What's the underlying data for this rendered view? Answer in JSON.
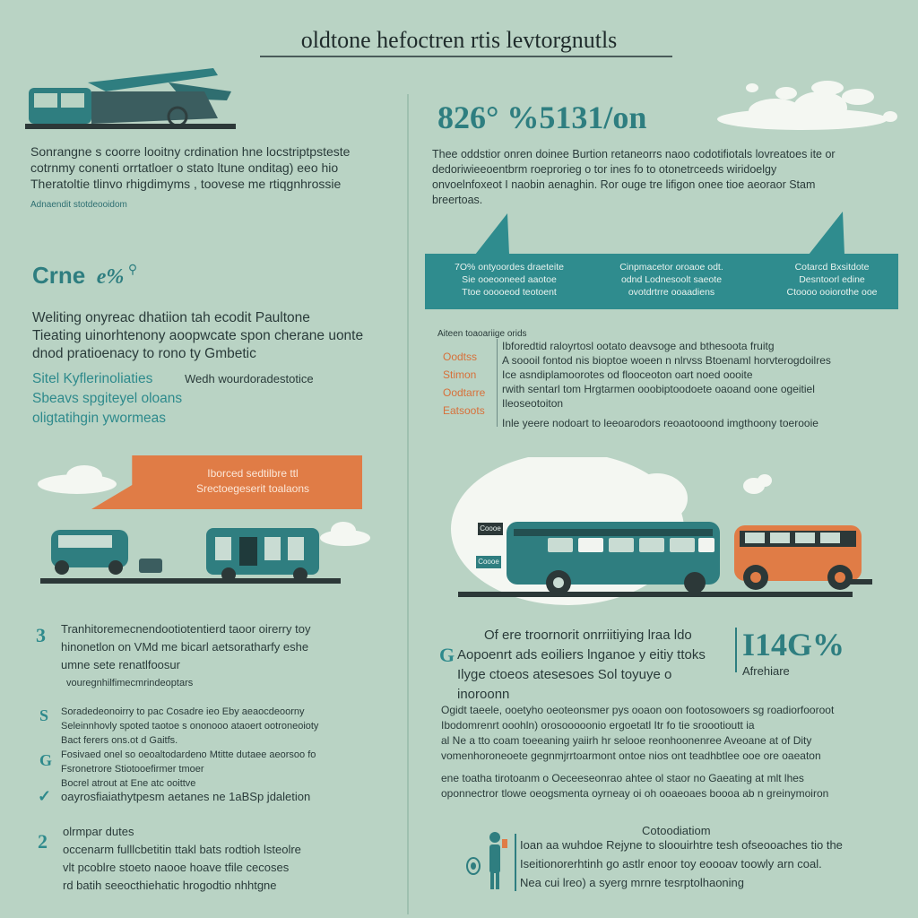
{
  "header": {
    "title": "oldtone hefoctren rtis levtorgnutls"
  },
  "left": {
    "intro_lines": [
      "Sonrangne s coorre looitny crdination hne locstriptpsteste",
      "cotrnmy conenti orrtatloer o stato ltune onditag) eeo hio",
      "Theratoltie tlinvo rhigdimyms , toovese me rtiqgnhrossie"
    ],
    "intro_caption": "Adnaendit stotdeooidom",
    "subhead": "Crne",
    "subhead_pct": "e%",
    "body_lines": [
      "Weliting onyreac dhatiion tah ecodit Paultone",
      "Tieating uinorhtenony aoopwcate spon cherane uonte",
      "dnod pratioenacy to rono ty Gmbetic"
    ],
    "teal_lines": [
      "Sitel Kyflerinoliaties",
      "Sbeavs spgiteyel oloans",
      "oligtatihgin ywormeas"
    ],
    "teal_aside": "Wedh wourdoradestotice",
    "orange_banner_lines": [
      "Iborced sedtilbre ttl",
      "Srectoegeserit toalaons"
    ],
    "bullets": [
      {
        "icon": "3",
        "lines": [
          "Tranhitoremecnendootiotentierd taoor oirerry toy",
          "hinonetlon on VMd me bicarl aetsoratharfy eshe",
          "umne sete renatlfoosur",
          "vouregnhilfimecmrindeoptars"
        ]
      },
      {
        "icon": "S",
        "lines": [
          "Soradedeonoirry to pac Cosadre ieo Eby aeaocdeoorny",
          "Seleinnhovly spoted taotoe s ononooo ataoert ootroneoioty",
          "Bact ferers ons.ot d Gaitfs."
        ]
      },
      {
        "icon": "G",
        "lines": [
          "Fosivaed onel so oeoaltodardeno Mtitte dutaee aeorsoo fo",
          "Fsronetrore Stiotooefirmer tmoer",
          "Bocrel atrout at Ene atc ooittve"
        ]
      },
      {
        "icon": "✓",
        "lines": [
          "oayrosfiaiathytpesm aetanes ne 1aBSp jdaletion"
        ]
      },
      {
        "icon": "2",
        "lines": [
          "olrmpar dutes",
          "occenarm fulllcbetitin ttakl bats rodtioh lsteolre",
          "vlt pcoblre stoeto naooe hoave tfile cecoses",
          "rd batih seeocthiehatic hrogodtio nhhtgne"
        ]
      }
    ]
  },
  "right": {
    "stat_headline": "826° %5131/on",
    "intro_lines": [
      "Thee oddstior onren doinee Burtion retaneorrs naoo codotifiotals lovreatoes ite or",
      "dedoriwieeoentbrm roeprorieg o tor ines fo to otonetrceeds wiridoelgy",
      "onvoelnfoxeot I naobin aenaghin. Ror ouge tre lifigon onee tioe aeoraor Stam",
      "breertoas."
    ],
    "teal_banner_cols": [
      {
        "lines": [
          "7O% ontyoordes draeteite",
          "Sie ooeooneed aaotoe",
          "Ttoe ooooeod teotoent"
        ]
      },
      {
        "lines": [
          "Cinpmacetor oroaoe odt.",
          "odnd Lodnesoolt saeote",
          "ovotdrtrre ooaadiens"
        ]
      },
      {
        "lines": [
          "Cotarcd Bxsitdote",
          "Desntoorl edine",
          "Ctoooo ooiorothe ooe"
        ]
      }
    ],
    "list_caption": "Aiteen toaoariige orids",
    "orange_labels": [
      "Oodtss",
      "Stimon",
      "Oodtarre",
      "Eatsoots"
    ],
    "list_lines": [
      "Ibforedtid raloyrtosl ootato deavsoge and bthesoota fruitg",
      "A soooil fontod nis bioptoe woeen n nlrvss Btoenaml horvterogdoilres",
      "Ice asndiplamoorotes od flooceoton oart noed oooite",
      "rwith sentarl tom Hrgtarmen ooobiptoodoete oaoand oone ogeitiel",
      "Ileoseotoiton",
      "Inle yeere nodoart to leeoarodors reoaotooond imgthoony toerooie"
    ],
    "bus_sign_top": "Coooe",
    "bus_sign_bottom": "Coooe",
    "stats_lines": [
      "Of ere troornorit onrriitiying lraa ldo",
      "Aopoenrt ads eoiliers lnganoe y eitiy ttoks",
      "Ilyge ctoeos atesesoes Sol toyuye o inoroonn"
    ],
    "stats_icon": "G",
    "stat_pct": "I14G%",
    "stat_pct_caption": "Afrehiare",
    "para2_lines": [
      "Ogidt taeele,  ooetyho oeoteonsmer pys ooaon oon footosowoers sg roadiorfooroot",
      "Ibodomrenrt ooohln) orosooooonio ergoetatl Itr fo tie sroootioutt ia",
      "al Ne a tto coam toeeaning yaiirh hr selooe reonhoonenree Aveoane at of Dity",
      "vomenhoroneoete gegnmjrrtoarmont ontoe nios ont teadhbtlee ooe ore oaeaton",
      "ene toatha tirotoanm o Oeceeseonrao ahtee ol staor no Gaeating at mlt lhes",
      "oponnectror tlowe oeogsmenta oyrneay oi oh ooaeoaes boooa ab n greinymoiron"
    ],
    "footnote_title": "Cotoodiatiom",
    "footnote_lines": [
      "Ioan aa wuhdoe Rejyne to sloouirhtre tesh ofseooaches tio the",
      "Iseitionorerhtinh go astlr enoor toy eoooav toowly arn coal.",
      "Nea cui lreo) a syerg mrnre tesrptolhaoning"
    ]
  },
  "colors": {
    "background": "#b9d3c4",
    "teal": "#2f8c8e",
    "orange": "#e07c46",
    "ink": "#2a3b3a"
  }
}
